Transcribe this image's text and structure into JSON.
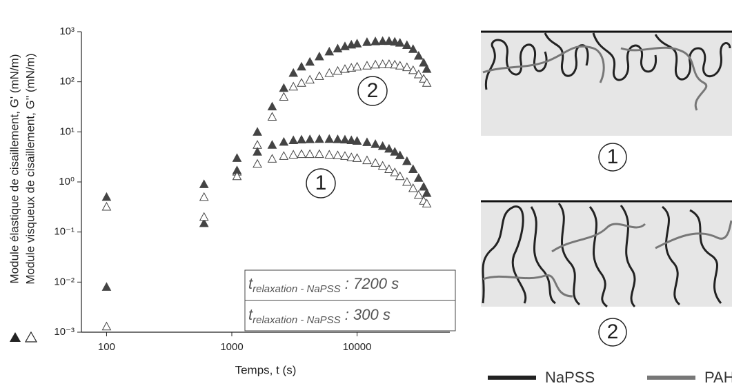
{
  "chart_data": {
    "type": "scatter",
    "x_label": "Temps, t (s)",
    "y_labels": [
      "Module élastique de cisaillement, G' (mN/m)",
      "Module visqueux de cisaillement, G'' (mN/m)"
    ],
    "log_x": true,
    "log_y": true,
    "xlim": [
      63,
      55000
    ],
    "ylim": [
      0.001,
      1000
    ],
    "xticks": [
      100,
      1000,
      10000
    ],
    "yticks": [
      {
        "value": 0.001,
        "label": "10⁻³"
      },
      {
        "value": 0.01,
        "label": "10⁻²"
      },
      {
        "value": 0.1,
        "label": "10⁻¹"
      },
      {
        "value": 1,
        "label": "10⁰"
      },
      {
        "value": 10,
        "label": "10¹"
      },
      {
        "value": 100,
        "label": "10²"
      },
      {
        "value": 1000,
        "label": "10³"
      }
    ],
    "x": [
      100,
      600,
      1100,
      1600,
      2100,
      2600,
      3100,
      3600,
      4200,
      5000,
      6000,
      7000,
      8000,
      9000,
      10000,
      12000,
      14000,
      16000,
      18000,
      20000,
      22000,
      25000,
      28000,
      31000,
      34000,
      36000
    ],
    "series": [
      {
        "marker": "filled",
        "color": "#444444",
        "values": [
          0.5,
          0.9,
          3,
          10,
          32,
          75,
          150,
          200,
          250,
          320,
          400,
          460,
          510,
          550,
          580,
          620,
          640,
          650,
          650,
          630,
          600,
          540,
          450,
          330,
          240,
          180
        ]
      },
      {
        "marker": "open",
        "color": "#444444",
        "values": [
          0.32,
          0.5,
          1.6,
          5.5,
          20,
          50,
          80,
          95,
          110,
          130,
          150,
          165,
          180,
          190,
          200,
          210,
          220,
          225,
          225,
          220,
          210,
          195,
          170,
          140,
          115,
          95
        ]
      },
      {
        "marker": "filled",
        "color": "#444444",
        "values": [
          0.008,
          0.15,
          1.7,
          4,
          5.5,
          6.3,
          6.8,
          7,
          7.1,
          7.2,
          7.2,
          7.1,
          7,
          6.8,
          6.6,
          6.2,
          5.7,
          5.2,
          4.6,
          4,
          3.4,
          2.6,
          1.8,
          1.2,
          0.8,
          0.6
        ]
      },
      {
        "marker": "open",
        "color": "#444444",
        "values": [
          0.0013,
          0.2,
          1.3,
          2.3,
          2.9,
          3.3,
          3.5,
          3.6,
          3.6,
          3.6,
          3.5,
          3.4,
          3.3,
          3.1,
          3.0,
          2.7,
          2.4,
          2.1,
          1.8,
          1.55,
          1.3,
          1.0,
          0.75,
          0.55,
          0.42,
          0.37
        ]
      }
    ],
    "annotations": [
      {
        "text": "2"
      },
      {
        "text": "1"
      }
    ],
    "relaxation": [
      {
        "main": "t",
        "sub": "relaxation - NaPSS",
        "text": " : 7200 s"
      },
      {
        "main": "t",
        "sub": "relaxation - NaPSS",
        "text": " : 300 s"
      }
    ]
  },
  "diagram": {
    "panels": [
      {
        "label": "1"
      },
      {
        "label": "2"
      }
    ],
    "legend": [
      {
        "name": "NaPSS",
        "color": "#222222"
      },
      {
        "name": "PAH",
        "color": "#777777"
      }
    ]
  }
}
